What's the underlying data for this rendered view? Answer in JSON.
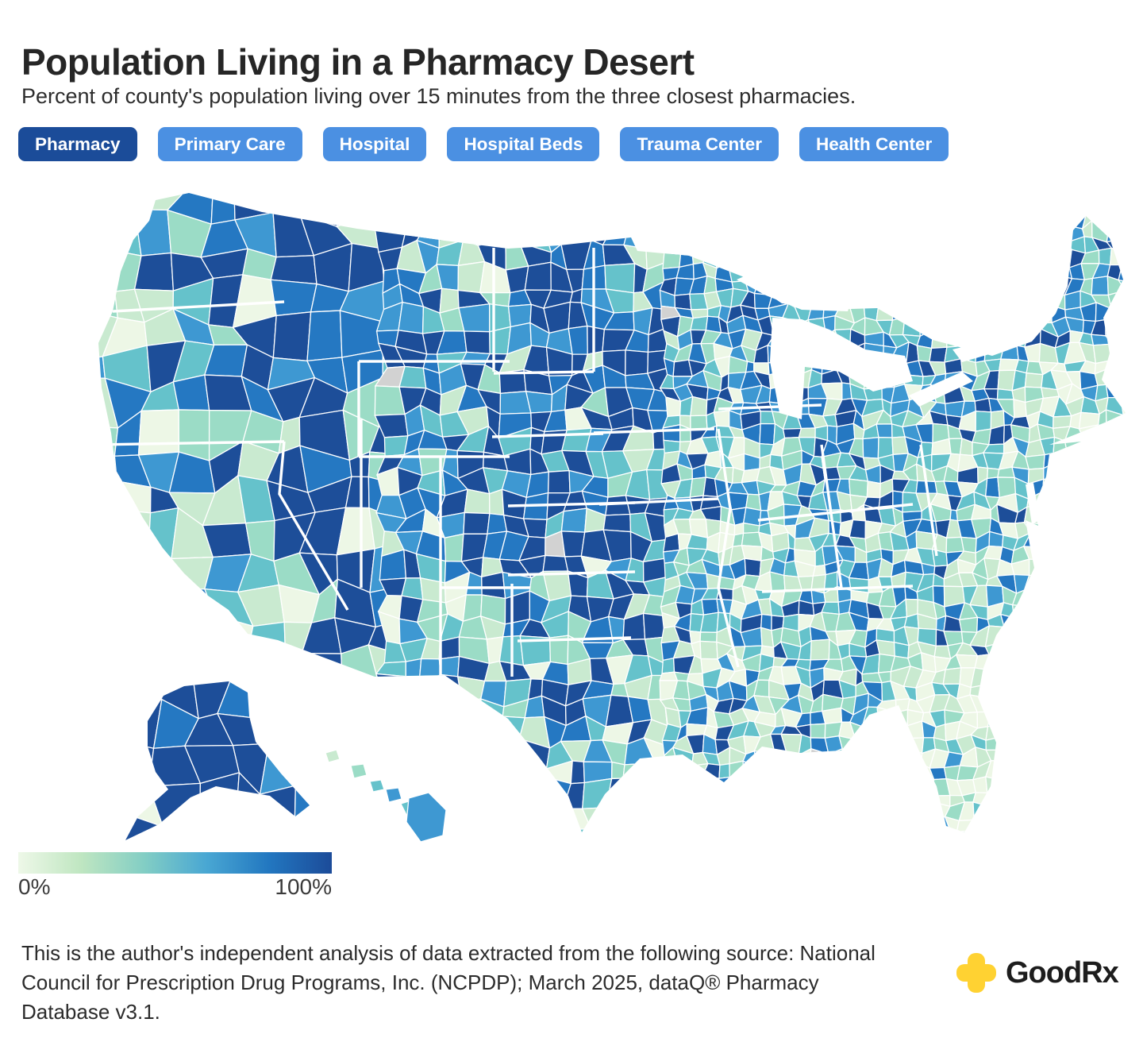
{
  "header": {
    "title": "Population Living in a Pharmacy Desert",
    "subtitle": "Percent of county's population living over 15 minutes from the three closest pharmacies."
  },
  "tabs": [
    {
      "label": "Pharmacy",
      "active": true
    },
    {
      "label": "Primary Care",
      "active": false
    },
    {
      "label": "Hospital",
      "active": false
    },
    {
      "label": "Hospital Beds",
      "active": false
    },
    {
      "label": "Trauma Center",
      "active": false
    },
    {
      "label": "Health Center",
      "active": false
    }
  ],
  "map": {
    "type": "choropleth",
    "region": "United States counties (with Alaska and Hawaii insets)",
    "metric": "Percent of county's population living over 15 minutes from the three closest pharmacies",
    "palette": {
      "pale": "#edf7e6",
      "mint": "#c9ead0",
      "lightTeal": "#9bdcc6",
      "teal": "#65c2cb",
      "sky": "#3e98d2",
      "blue": "#2578c2",
      "navy": "#1d4e99",
      "noData": "#d2d2d2"
    },
    "border_color": "#ffffff"
  },
  "legend": {
    "min_label": "0%",
    "max_label": "100%",
    "gradient": [
      "#eef8e8",
      "#bfe6c1",
      "#83cec4",
      "#49a7d3",
      "#2277c0",
      "#1c4b99"
    ]
  },
  "footer": {
    "source_text": "This is the author's independent analysis of data extracted from the following source: National Council for Prescription Drug Programs, Inc. (NCPDP); March 2025, dataQ® Pharmacy Database v3.1.",
    "logo_text": "GoodRx",
    "logo_color": "#ffd232"
  }
}
